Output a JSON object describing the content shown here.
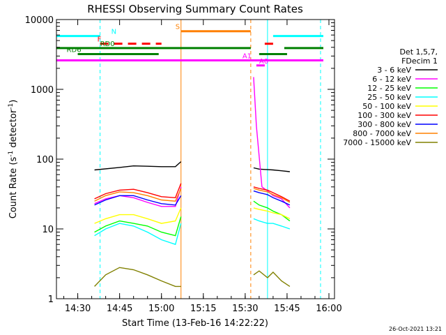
{
  "chart_data": {
    "type": "line",
    "title": "RHESSI Observing Summary Count Rates",
    "xlabel": "Start Time (13-Feb-16 14:22:22)",
    "ylabel": "Count Rate (s",
    "ylabel_sup": "-1",
    "ylabel_rest": " detector",
    "ylabel_sup2": "-1",
    "ylabel_close": ")",
    "x_unit": "minutes",
    "xlim": [
      "14:22:22",
      "16:02:00"
    ],
    "ylim": [
      1,
      10000
    ],
    "yscale": "log",
    "x_ticks": [
      "14:30",
      "14:45",
      "15:00",
      "15:15",
      "15:30",
      "15:45",
      "16:00"
    ],
    "y_ticks": [
      "1",
      "10",
      "100",
      "1000",
      "10000"
    ],
    "y_tick_values": [
      1,
      10,
      100,
      1000,
      10000
    ],
    "legend_title": [
      "Det 1,5,7,",
      "FDecim 1"
    ],
    "legend_position": "right",
    "series": [
      {
        "name": "3 - 6 keV",
        "color": "#000000",
        "segments": [
          {
            "x": [
              "14:36",
              "14:45",
              "14:50",
              "14:55",
              "15:00",
              "15:05",
              "15:07"
            ],
            "y": [
              70,
              76,
              80,
              79,
              78,
              78,
              92
            ]
          },
          {
            "x": [
              "15:33",
              "15:35",
              "15:40",
              "15:43",
              "15:46"
            ],
            "y": [
              75,
              72,
              70,
              68,
              66
            ]
          }
        ]
      },
      {
        "name": "6 - 12 keV",
        "color": "#ff00ff",
        "segments": [
          {
            "x": [
              "14:36",
              "14:40",
              "14:45",
              "14:50",
              "14:55",
              "15:00",
              "15:05",
              "15:07"
            ],
            "y": [
              23,
              27,
              30,
              28,
              24,
              21,
              21,
              40
            ]
          },
          {
            "x": [
              "15:33",
              "15:34",
              "15:36",
              "15:38",
              "15:40",
              "15:43",
              "15:46"
            ],
            "y": [
              1500,
              300,
              40,
              35,
              30,
              27,
              20
            ]
          }
        ]
      },
      {
        "name": "12 - 25 keV",
        "color": "#00ff00",
        "segments": [
          {
            "x": [
              "14:36",
              "14:40",
              "14:45",
              "14:50",
              "14:55",
              "15:00",
              "15:05",
              "15:07"
            ],
            "y": [
              9,
              11,
              13,
              12,
              11,
              9,
              8,
              15
            ]
          },
          {
            "x": [
              "15:33",
              "15:35",
              "15:38",
              "15:40",
              "15:43",
              "15:46"
            ],
            "y": [
              25,
              22,
              20,
              18,
              16,
              13
            ]
          }
        ]
      },
      {
        "name": "25 - 50 keV",
        "color": "#00ffff",
        "segments": [
          {
            "x": [
              "14:36",
              "14:40",
              "14:45",
              "14:50",
              "14:55",
              "15:00",
              "15:05",
              "15:07"
            ],
            "y": [
              8,
              10,
              12,
              11,
              9,
              7,
              6,
              12
            ]
          },
          {
            "x": [
              "15:33",
              "15:35",
              "15:38",
              "15:40",
              "15:43",
              "15:46"
            ],
            "y": [
              14,
              13,
              12,
              12,
              11,
              10
            ]
          }
        ]
      },
      {
        "name": "50 - 100 keV",
        "color": "#ffff00",
        "segments": [
          {
            "x": [
              "14:36",
              "14:40",
              "14:45",
              "14:50",
              "14:55",
              "15:00",
              "15:05",
              "15:07"
            ],
            "y": [
              12,
              14,
              16,
              16,
              14,
              12,
              13,
              20
            ]
          },
          {
            "x": [
              "15:33",
              "15:35",
              "15:38",
              "15:40",
              "15:43",
              "15:46"
            ],
            "y": [
              20,
              19,
              18,
              17,
              16,
              14
            ]
          }
        ]
      },
      {
        "name": "100 - 300 keV",
        "color": "#ff0000",
        "segments": [
          {
            "x": [
              "14:36",
              "14:40",
              "14:45",
              "14:50",
              "14:55",
              "15:00",
              "15:05",
              "15:07"
            ],
            "y": [
              27,
              32,
              36,
              37,
              33,
              29,
              28,
              45
            ]
          },
          {
            "x": [
              "15:33",
              "15:35",
              "15:38",
              "15:40",
              "15:43",
              "15:46"
            ],
            "y": [
              40,
              38,
              36,
              33,
              29,
              25
            ]
          }
        ]
      },
      {
        "name": "300 - 800 keV",
        "color": "#0000ff",
        "segments": [
          {
            "x": [
              "14:36",
              "14:40",
              "14:45",
              "14:50",
              "14:55",
              "15:00",
              "15:05",
              "15:07"
            ],
            "y": [
              22,
              26,
              30,
              30,
              26,
              23,
              22,
              30
            ]
          },
          {
            "x": [
              "15:33",
              "15:35",
              "15:38",
              "15:40",
              "15:43",
              "15:46"
            ],
            "y": [
              35,
              33,
              31,
              28,
              25,
              22
            ]
          }
        ]
      },
      {
        "name": "800 - 7000 keV",
        "color": "#ff8000",
        "segments": [
          {
            "x": [
              "14:36",
              "14:40",
              "14:45",
              "14:50",
              "14:55",
              "15:00",
              "15:05",
              "15:07"
            ],
            "y": [
              25,
              30,
              34,
              33,
              30,
              26,
              25,
              38
            ]
          },
          {
            "x": [
              "15:33",
              "15:35",
              "15:38",
              "15:40",
              "15:43",
              "15:46"
            ],
            "y": [
              38,
              36,
              34,
              31,
              28,
              24
            ]
          }
        ]
      },
      {
        "name": "7000 - 15000 keV",
        "color": "#808000",
        "segments": [
          {
            "x": [
              "14:36",
              "14:40",
              "14:45",
              "14:50",
              "14:55",
              "15:00",
              "15:05",
              "15:07"
            ],
            "y": [
              1.5,
              2.2,
              2.8,
              2.6,
              2.2,
              1.8,
              1.5,
              1.5
            ]
          },
          {
            "x": [
              "15:33",
              "15:35",
              "15:38",
              "15:40",
              "15:43",
              "15:46"
            ],
            "y": [
              2.2,
              2.5,
              2.0,
              2.4,
              1.8,
              1.5
            ]
          }
        ]
      }
    ],
    "flag_bars": [
      {
        "label": "N",
        "color": "#00ffff",
        "y": 5800,
        "style": "solid",
        "spans": [
          [
            "14:22:22",
            "14:38"
          ],
          [
            "15:40",
            "15:58"
          ]
        ],
        "label_at": "14:42"
      },
      {
        "label": "F",
        "color": "#ff0000",
        "y": 4500,
        "style": "dashed",
        "spans": [
          [
            "14:38",
            "15:00"
          ],
          [
            "15:37",
            "15:40"
          ]
        ],
        "label_at": "14:37"
      },
      {
        "label": "RD0",
        "color": "#008000",
        "y": 3900,
        "style": "solid",
        "spans": [
          [
            "14:22:22",
            "15:32"
          ],
          [
            "15:44",
            "15:58"
          ]
        ],
        "label_at": "14:38"
      },
      {
        "label": "RD6",
        "color": "#008000",
        "y": 3200,
        "style": "solid",
        "spans": [
          [
            "14:30",
            "14:59"
          ],
          [
            "15:35",
            "15:45"
          ]
        ],
        "label_at": "14:26"
      },
      {
        "label": "S",
        "color": "#ff8000",
        "y": 6800,
        "style": "solid",
        "spans": [
          [
            "15:07",
            "15:32"
          ]
        ],
        "label_at": "15:05"
      },
      {
        "label": "A0",
        "color": "#ff00ff",
        "y": 2200,
        "style": "solid",
        "spans": [
          [
            "15:34",
            "15:37"
          ]
        ],
        "label_at": "15:35"
      },
      {
        "label": "A1",
        "color": "#ff00ff",
        "y": 2600,
        "style": "solid",
        "spans": [
          [
            "14:22:22",
            "15:58"
          ]
        ],
        "label_at": "15:29"
      }
    ],
    "vertical_markers": [
      {
        "x": "14:38",
        "color": "#00ffff",
        "style": "dashed"
      },
      {
        "x": "15:07",
        "color": "#ff8000",
        "style": "solid"
      },
      {
        "x": "15:32",
        "color": "#ff8000",
        "style": "dashed"
      },
      {
        "x": "15:38",
        "color": "#00ffff",
        "style": "solid"
      },
      {
        "x": "15:57",
        "color": "#00ffff",
        "style": "dashed"
      }
    ],
    "timestamp": "26-Oct-2021 13:21"
  }
}
